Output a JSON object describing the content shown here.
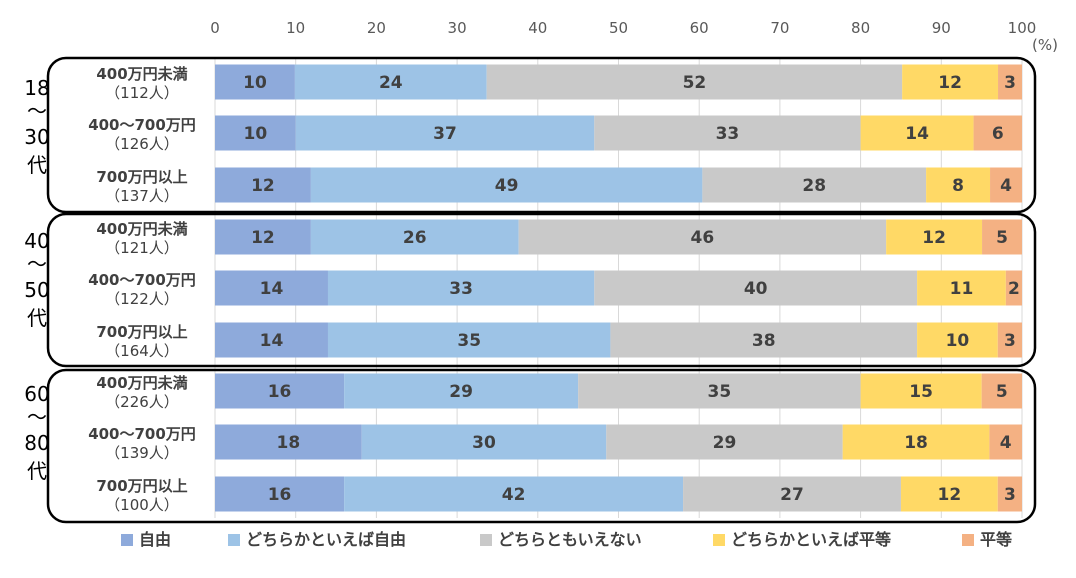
{
  "chart_data": {
    "type": "bar",
    "orientation": "horizontal",
    "stacked": true,
    "unit": "(%)",
    "xlim": [
      0,
      100
    ],
    "xticks": [
      "0",
      "10",
      "20",
      "30",
      "40",
      "50",
      "60",
      "70",
      "80",
      "90",
      "100"
    ],
    "colors": [
      "#8eaadb",
      "#9dc3e6",
      "#c9c9c9",
      "#ffd966",
      "#f4b183"
    ],
    "series_names": [
      "自由",
      "どちらかといえば自由",
      "どちらともいえない",
      "どちらかといえば平等",
      "平等"
    ],
    "groups": [
      {
        "label": [
          "18",
          "～",
          "30",
          "代"
        ],
        "rows": [
          {
            "label": "400万円未満",
            "n": "（112人）",
            "values": [
              10,
              24,
              52,
              12,
              3
            ]
          },
          {
            "label": "400～700万円",
            "n": "（126人）",
            "values": [
              10,
              37,
              33,
              14,
              6
            ]
          },
          {
            "label": "700万円以上",
            "n": "（137人）",
            "values": [
              12,
              49,
              28,
              8,
              4
            ]
          }
        ]
      },
      {
        "label": [
          "40",
          "～",
          "50",
          "代"
        ],
        "rows": [
          {
            "label": "400万円未満",
            "n": "（121人）",
            "values": [
              12,
              26,
              46,
              12,
              5
            ]
          },
          {
            "label": "400～700万円",
            "n": "（122人）",
            "values": [
              14,
              33,
              40,
              11,
              2
            ]
          },
          {
            "label": "700万円以上",
            "n": "（164人）",
            "values": [
              14,
              35,
              38,
              10,
              3
            ]
          }
        ]
      },
      {
        "label": [
          "60",
          "～",
          "80",
          "代"
        ],
        "rows": [
          {
            "label": "400万円未満",
            "n": "（226人）",
            "values": [
              16,
              29,
              35,
              15,
              5
            ]
          },
          {
            "label": "400～700万円",
            "n": "（139人）",
            "values": [
              18,
              30,
              29,
              18,
              4
            ]
          },
          {
            "label": "700万円以上",
            "n": "（100人）",
            "values": [
              16,
              42,
              27,
              12,
              3
            ]
          }
        ]
      }
    ],
    "legend_position": "bottom"
  }
}
